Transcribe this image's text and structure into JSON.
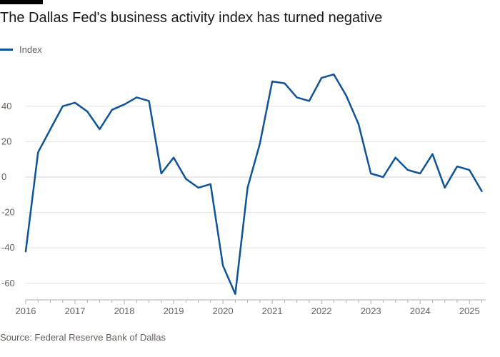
{
  "title": "The Dallas Fed's business activity index has turned negative",
  "source": "Source: Federal Reserve Bank of Dallas",
  "colors": {
    "line": "#0f5499",
    "grid": "#e6e6e6",
    "axis_text": "#66605c",
    "accent": "#000000"
  },
  "chart_data": {
    "type": "line",
    "title": "The Dallas Fed's business activity index has turned negative",
    "xlabel": "",
    "ylabel": "",
    "grid": "horizontal",
    "legend_position": "top-left",
    "ylim": [
      -70,
      60
    ],
    "xlim": [
      2016.0,
      2025.33
    ],
    "yticks": [
      -60,
      -40,
      -20,
      0,
      20,
      40
    ],
    "ytick_labels": [
      "-60",
      "-40",
      "-20",
      "0",
      "20",
      "40"
    ],
    "xticks": [
      2016,
      2017,
      2018,
      2019,
      2020,
      2021,
      2022,
      2023,
      2024,
      2025
    ],
    "xtick_labels": [
      "2016",
      "2017",
      "2018",
      "2019",
      "2020",
      "2021",
      "2022",
      "2023",
      "2024",
      "2025"
    ],
    "series": [
      {
        "name": "Index",
        "x": [
          2016.0,
          2016.25,
          2016.5,
          2016.75,
          2017.0,
          2017.25,
          2017.5,
          2017.75,
          2018.0,
          2018.25,
          2018.5,
          2018.75,
          2019.0,
          2019.25,
          2019.5,
          2019.75,
          2020.0,
          2020.25,
          2020.5,
          2020.75,
          2021.0,
          2021.25,
          2021.5,
          2021.75,
          2022.0,
          2022.25,
          2022.5,
          2022.75,
          2023.0,
          2023.25,
          2023.5,
          2023.75,
          2024.0,
          2024.25,
          2024.5,
          2024.75,
          2025.0,
          2025.25
        ],
        "values": [
          -42,
          14,
          27,
          40,
          42,
          37,
          27,
          38,
          41,
          45,
          43,
          2,
          11,
          -1,
          -6,
          -4,
          -50,
          -66,
          -6,
          19,
          54,
          53,
          45,
          43,
          56,
          58,
          46,
          30,
          2,
          0,
          11,
          4,
          2,
          13,
          -6,
          6,
          4,
          -8
        ]
      }
    ]
  }
}
